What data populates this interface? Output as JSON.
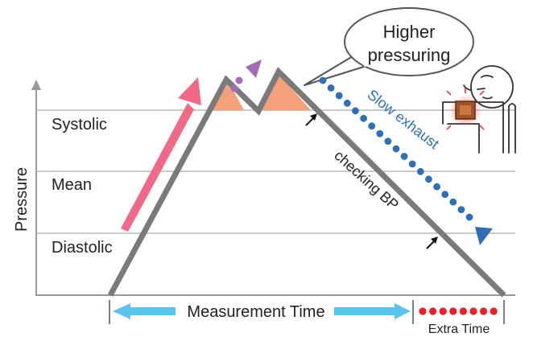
{
  "y_axis": {
    "label": "Pressure"
  },
  "levels": [
    {
      "label": "Systolic"
    },
    {
      "label": "Mean"
    },
    {
      "label": "Diastolic"
    }
  ],
  "callout": {
    "line1": "Higher",
    "line2": "pressuring"
  },
  "annotations": {
    "slow_exhaust": "Slow exhaust",
    "checking_bp": "checking BP"
  },
  "timeline": {
    "measurement_time": "Measurement Time",
    "extra_time": "Extra Time"
  },
  "colors": {
    "grid": "#aaaaaa",
    "curve": "#7a7a7a",
    "overshoot_fill": "#f4a07a",
    "rise_arrow": "#f06a88",
    "purple_arrow": "#a56bb8",
    "exhaust_dots": "#2f6fb5",
    "measurement_arrow": "#5cc3ee",
    "extra_dots": "#e8202a"
  },
  "icons": [
    "person-with-cuff-icon"
  ]
}
